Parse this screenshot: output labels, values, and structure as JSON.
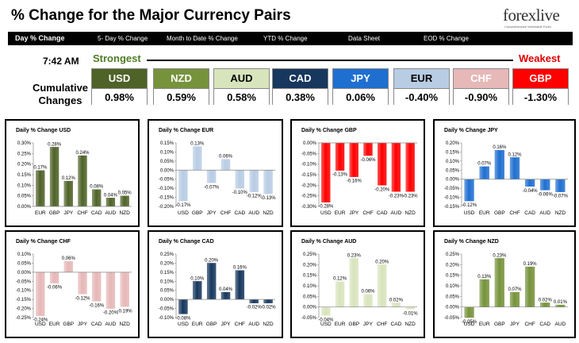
{
  "title": "% Change for the Major Currency Pairs",
  "logo": {
    "text": "forexlive",
    "tagline": "Comprehensive Worldwide Forex"
  },
  "tabs": [
    "Day % Change",
    "5- Day % Change",
    "Month to Date % Change",
    "YTD % Change",
    "Data Sheet",
    "EOD % Change"
  ],
  "time": "7:42 AM",
  "strongest_label": "Strongest",
  "weakest_label": "Weakest",
  "cumulative_label_line1": "Cumulative",
  "cumulative_label_line2": "Changes",
  "currencies": [
    {
      "code": "USD",
      "value": "0.98%",
      "bg": "#4f6228",
      "fg": "#ffffff"
    },
    {
      "code": "NZD",
      "value": "0.59%",
      "bg": "#76933c",
      "fg": "#ffffff"
    },
    {
      "code": "AUD",
      "value": "0.58%",
      "bg": "#d8e4bc",
      "fg": "#000000"
    },
    {
      "code": "CAD",
      "value": "0.38%",
      "bg": "#17375e",
      "fg": "#ffffff"
    },
    {
      "code": "JPY",
      "value": "0.06%",
      "bg": "#1f6fd1",
      "fg": "#ffffff"
    },
    {
      "code": "EUR",
      "value": "-0.40%",
      "bg": "#b8cce4",
      "fg": "#000000"
    },
    {
      "code": "CHF",
      "value": "-0.90%",
      "bg": "#e6b8b7",
      "fg": "#ffffff"
    },
    {
      "code": "GBP",
      "value": "-1.30%",
      "bg": "#ff0000",
      "fg": "#ffffff"
    }
  ],
  "chart_data": [
    {
      "type": "bar",
      "title": "Daily % Change USD",
      "categories": [
        "EUR",
        "GBP",
        "JPY",
        "CHF",
        "CAD",
        "AUD",
        "NZD"
      ],
      "values": [
        0.17,
        0.28,
        0.12,
        0.24,
        0.08,
        0.04,
        0.05
      ],
      "labels": [
        "0.17%",
        "0.28%",
        "0.12%",
        "0.24%",
        "0.08%",
        "0.04%",
        "0.05%"
      ],
      "ylim": [
        0,
        0.3
      ],
      "ytick_step": 0.05,
      "ytick_labels": [
        "0.30%",
        "0.25%",
        "0.20%",
        "0.15%",
        "0.10%",
        "0.05%",
        "0.00%"
      ],
      "color": "#4f6228"
    },
    {
      "type": "bar",
      "title": "Daily % Change EUR",
      "categories": [
        "USD",
        "GBP",
        "JPY",
        "CHF",
        "CAD",
        "AUD",
        "NZD"
      ],
      "values": [
        -0.17,
        0.13,
        -0.07,
        0.06,
        -0.1,
        -0.12,
        -0.13
      ],
      "labels": [
        "-0.17%",
        "0.13%",
        "-0.07%",
        "0.06%",
        "-0.10%",
        "-0.12%",
        "-0.13%"
      ],
      "ylim": [
        -0.2,
        0.15
      ],
      "ytick_step": 0.05,
      "ytick_labels": [
        "0.15%",
        "0.10%",
        "0.05%",
        "0.00%",
        "-0.05%",
        "-0.10%",
        "-0.15%",
        "-0.20%"
      ],
      "color": "#b8cce4"
    },
    {
      "type": "bar",
      "title": "Daily % Change GBP",
      "categories": [
        "USD",
        "EUR",
        "JPY",
        "CHF",
        "CAD",
        "AUD",
        "NZD"
      ],
      "values": [
        -0.28,
        -0.13,
        -0.16,
        -0.06,
        -0.2,
        -0.23,
        -0.23
      ],
      "labels": [
        "-0.28%",
        "-0.13%",
        "-0.16%",
        "-0.06%",
        "-0.20%",
        "-0.23%",
        "-0.23%"
      ],
      "ylim": [
        -0.3,
        0.0
      ],
      "ytick_step": 0.05,
      "ytick_labels": [
        "0.00%",
        "-0.05%",
        "-0.10%",
        "-0.15%",
        "-0.20%",
        "-0.25%",
        "-0.30%"
      ],
      "color": "#ff0000"
    },
    {
      "type": "bar",
      "title": "Daily % Change JPY",
      "categories": [
        "USD",
        "EUR",
        "GBP",
        "CHF",
        "CAD",
        "AUD",
        "NZD"
      ],
      "values": [
        -0.12,
        0.07,
        0.16,
        0.12,
        -0.04,
        -0.06,
        -0.07
      ],
      "labels": [
        "-0.12%",
        "0.07%",
        "0.16%",
        "0.12%",
        "-0.04%",
        "-0.06%",
        "-0.07%"
      ],
      "ylim": [
        -0.15,
        0.2
      ],
      "ytick_step": 0.05,
      "ytick_labels": [
        "0.20%",
        "0.15%",
        "0.10%",
        "0.05%",
        "0.00%",
        "-0.05%",
        "-0.10%",
        "-0.15%"
      ],
      "color": "#1f6fd1"
    },
    {
      "type": "bar",
      "title": "Daily % Change CHF",
      "categories": [
        "USD",
        "EUR",
        "GBP",
        "JPY",
        "CAD",
        "AUD",
        "NZD"
      ],
      "values": [
        -0.24,
        -0.06,
        0.06,
        -0.12,
        -0.16,
        -0.2,
        -0.19
      ],
      "labels": [
        "-0.24%",
        "-0.06%",
        "0.06%",
        "-0.12%",
        "-0.16%",
        "-0.20%",
        "-0.19%"
      ],
      "ylim": [
        -0.25,
        0.1
      ],
      "ytick_step": 0.05,
      "ytick_labels": [
        "0.10%",
        "0.05%",
        "0.00%",
        "-0.05%",
        "-0.10%",
        "-0.15%",
        "-0.20%",
        "-0.25%"
      ],
      "color": "#e6b8b7"
    },
    {
      "type": "bar",
      "title": "Daily % Change CAD",
      "categories": [
        "USD",
        "EUR",
        "GBP",
        "JPY",
        "CHF",
        "AUD",
        "NZD"
      ],
      "values": [
        -0.08,
        0.1,
        0.2,
        0.04,
        0.16,
        -0.02,
        -0.02
      ],
      "labels": [
        "-0.08%",
        "0.10%",
        "0.20%",
        "0.04%",
        "0.16%",
        "-0.02%",
        "-0.02%"
      ],
      "ylim": [
        -0.1,
        0.25
      ],
      "ytick_step": 0.05,
      "ytick_labels": [
        "0.25%",
        "0.20%",
        "0.15%",
        "0.10%",
        "0.05%",
        "0.00%",
        "-0.05%",
        "-0.10%"
      ],
      "color": "#17375e"
    },
    {
      "type": "bar",
      "title": "Daily % Change AUD",
      "categories": [
        "USD",
        "EUR",
        "GBP",
        "JPY",
        "CHF",
        "CAD",
        "NZD"
      ],
      "values": [
        -0.04,
        0.12,
        0.23,
        0.06,
        0.2,
        0.02,
        -0.01
      ],
      "labels": [
        "-0.04%",
        "0.12%",
        "0.23%",
        "0.06%",
        "0.20%",
        "0.02%",
        "-0.01%"
      ],
      "ylim": [
        -0.05,
        0.25
      ],
      "ytick_step": 0.05,
      "ytick_labels": [
        "0.25%",
        "0.20%",
        "0.15%",
        "0.10%",
        "0.05%",
        "0.00%",
        "-0.05%"
      ],
      "color": "#d8e4bc"
    },
    {
      "type": "bar",
      "title": "Daily % Change NZD",
      "categories": [
        "USD",
        "EUR",
        "GBP",
        "JPY",
        "CHF",
        "CAD",
        "AUD"
      ],
      "values": [
        -0.05,
        0.13,
        0.23,
        0.07,
        0.19,
        0.02,
        0.01
      ],
      "labels": [
        "-0.05%",
        "0.13%",
        "0.23%",
        "0.07%",
        "0.19%",
        "0.02%",
        "0.01%"
      ],
      "ylim": [
        -0.05,
        0.25
      ],
      "ytick_step": 0.05,
      "ytick_labels": [
        "0.25%",
        "0.20%",
        "0.15%",
        "0.10%",
        "0.05%",
        "0.00%",
        "-0.05%"
      ],
      "color": "#76933c"
    }
  ]
}
